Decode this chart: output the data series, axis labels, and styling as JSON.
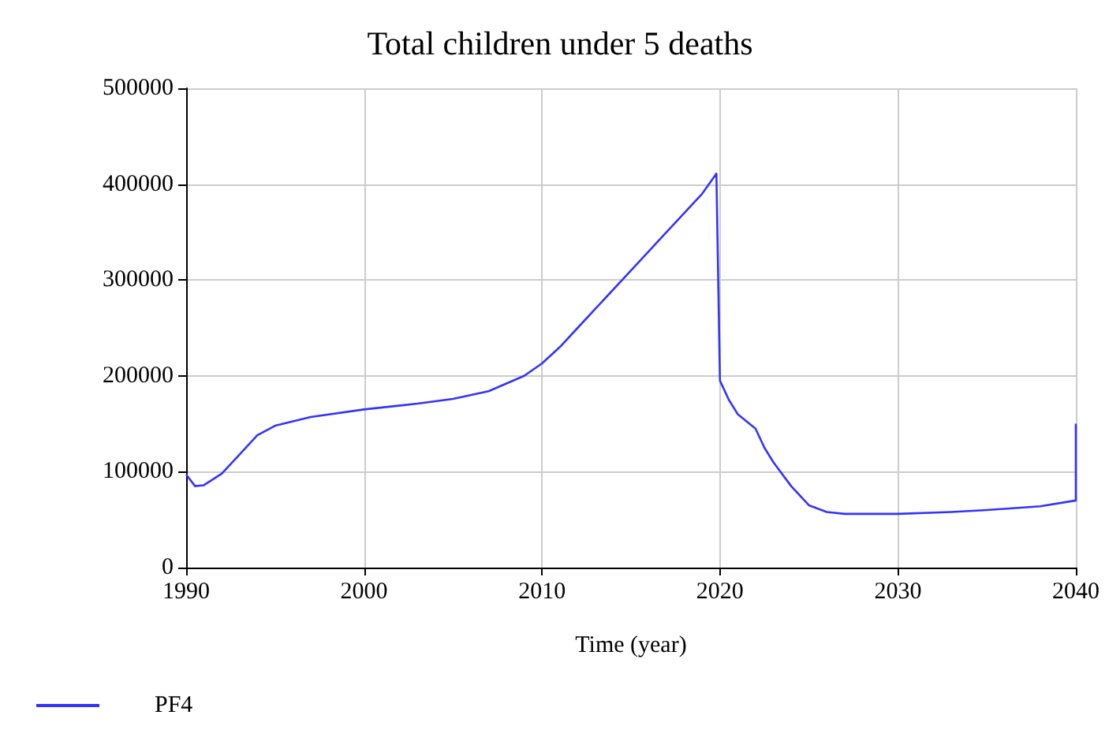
{
  "chart_data": {
    "type": "line",
    "title": "Total children under 5 deaths",
    "xlabel": "Time (year)",
    "xlim": [
      1990,
      2040
    ],
    "xticks": [
      1990,
      2000,
      2010,
      2020,
      2030,
      2040
    ],
    "ylim": [
      0,
      500000
    ],
    "yticks": [
      0,
      100000,
      200000,
      300000,
      400000,
      500000
    ],
    "grid": true,
    "legend": "bottom left",
    "marker": "none",
    "line_style": "solid",
    "series": [
      {
        "name": "PF4",
        "color": "#3333ff",
        "x": [
          1990,
          1990.5,
          1991,
          1992,
          1993,
          1994,
          1995,
          1997,
          2000,
          2003,
          2005,
          2007,
          2008,
          2009,
          2010,
          2011,
          2012,
          2013,
          2015,
          2017,
          2018,
          2019,
          2019.8,
          2020,
          2020.5,
          2021,
          2022,
          2022.5,
          2023,
          2024,
          2025,
          2026,
          2027,
          2030,
          2033,
          2035,
          2038,
          2040,
          2040
        ],
        "values": [
          97000,
          85000,
          86000,
          98000,
          118000,
          138000,
          148000,
          157000,
          165000,
          171000,
          176000,
          184000,
          192000,
          200000,
          213000,
          230000,
          250000,
          270000,
          310000,
          350000,
          370000,
          390000,
          411000,
          195000,
          175000,
          160000,
          145000,
          125000,
          110000,
          85000,
          65000,
          58000,
          56000,
          56000,
          58000,
          60000,
          64000,
          70000,
          150000
        ]
      }
    ]
  }
}
